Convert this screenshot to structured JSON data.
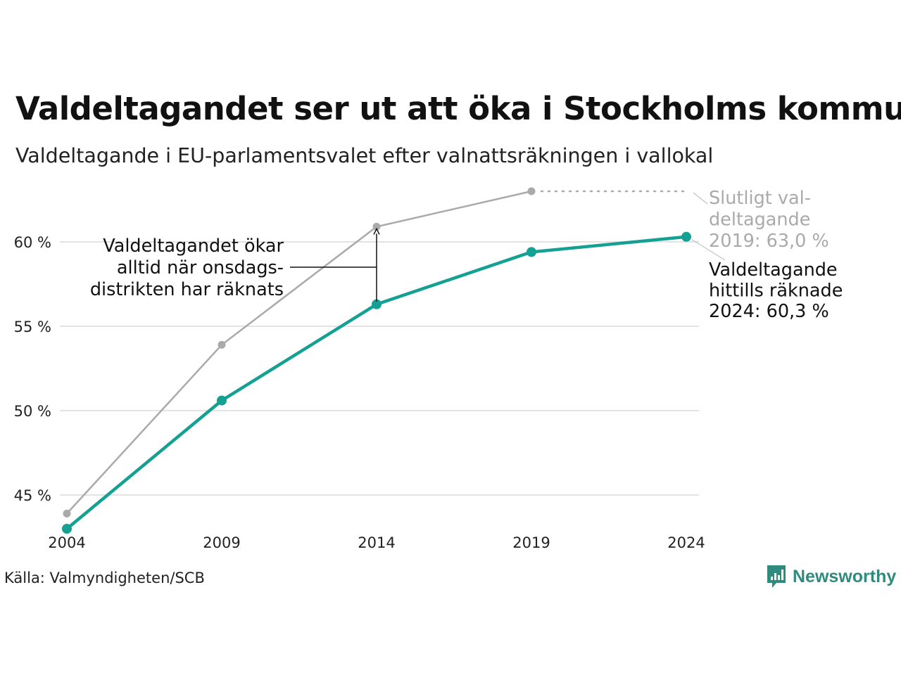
{
  "title": "Valdeltagandet ser ut att öka i Stockholms kommun",
  "subtitle": "Valdeltagande i EU-parlamentsvalet efter valnattsräkningen i vallokal",
  "source": "Källa: Valmyndigheten/SCB",
  "brand": "Newsworthy",
  "colors": {
    "current": "#14a092",
    "final": "#aaaaaa",
    "grid": "#e3e3e3",
    "brand": "#2e8b7d"
  },
  "chart_data": {
    "type": "line",
    "x": [
      "2004",
      "2009",
      "2014",
      "2019",
      "2024"
    ],
    "ylim": [
      42.5,
      63.5
    ],
    "yticks": [
      45,
      50,
      55,
      60
    ],
    "ytick_labels": [
      "45 %",
      "50 %",
      "55 %",
      "60 %"
    ],
    "grid": true,
    "series": [
      {
        "key": "final",
        "values": [
          43.9,
          53.9,
          60.9,
          63.0,
          null
        ]
      },
      {
        "key": "current",
        "values": [
          43.0,
          50.6,
          56.3,
          59.4,
          60.3
        ]
      }
    ],
    "annotations": {
      "gap": [
        "Valdeltagandet ökar",
        "alltid när onsdags-",
        "distrikten har räknats"
      ],
      "final_label": [
        "Slutligt val-",
        "deltagande",
        "2019: 63,0 %"
      ],
      "current_label": [
        "Valdeltagande",
        "hittills räknade",
        "2024: 60,3 %"
      ]
    }
  }
}
